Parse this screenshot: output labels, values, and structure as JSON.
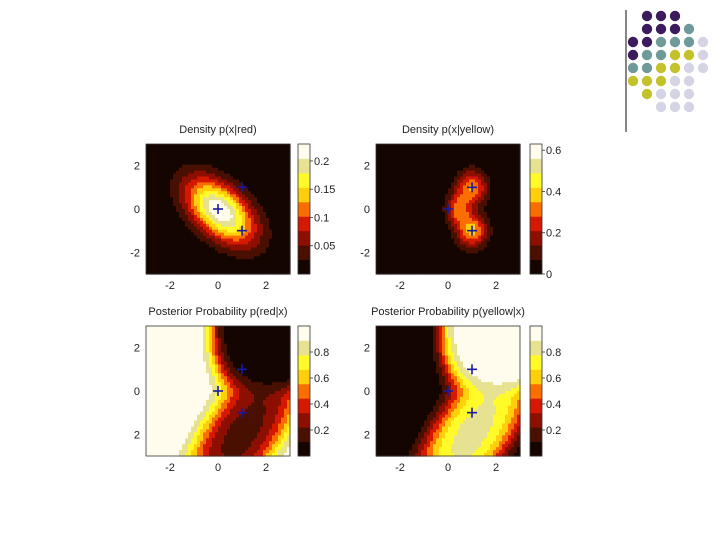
{
  "decoration": {
    "dot_colors": [
      "#3b1a5e",
      "#6f9a9a",
      "#c3c22a",
      "#d4d4e4"
    ],
    "rule_color": "#444444"
  },
  "chart_data": [
    {
      "type": "heatmap",
      "title": "Density p(x|red)",
      "xticks": [
        -2,
        0,
        2
      ],
      "yticks": [
        2,
        0,
        -2
      ],
      "xlim": [
        -3,
        3
      ],
      "ylim": [
        -3,
        3
      ],
      "colorbar": {
        "ticks": [
          0.05,
          0.1,
          0.15,
          0.2
        ],
        "labels": [
          "0.05",
          "0.1",
          "0.15",
          "0.2"
        ],
        "range": [
          0,
          0.23
        ]
      },
      "markers": [
        {
          "x": 0,
          "y": 0
        },
        {
          "x": 1,
          "y": 1
        },
        {
          "x": 1,
          "y": -1
        }
      ]
    },
    {
      "type": "heatmap",
      "title": "Density p(x|yellow)",
      "xticks": [
        -2,
        0,
        2
      ],
      "yticks": [
        2,
        0,
        -2
      ],
      "xlim": [
        -3,
        3
      ],
      "ylim": [
        -3,
        3
      ],
      "colorbar": {
        "ticks": [
          0,
          0.2,
          0.4,
          0.6
        ],
        "labels": [
          "0",
          "0.2",
          "0.4",
          "0.6"
        ],
        "range": [
          0,
          0.63
        ]
      },
      "markers": [
        {
          "x": 0,
          "y": 0
        },
        {
          "x": 1,
          "y": 1
        },
        {
          "x": 1,
          "y": -1
        }
      ]
    },
    {
      "type": "heatmap",
      "title": "Posterior Probability p(red|x)",
      "xticks": [
        -2,
        0,
        2
      ],
      "yticks": [
        2,
        0,
        2
      ],
      "xlim": [
        -3,
        3
      ],
      "ylim": [
        -3,
        3
      ],
      "colorbar": {
        "ticks": [
          0.2,
          0.4,
          0.6,
          0.8
        ],
        "labels": [
          "0.2",
          "0.4",
          "0.6",
          "0.8"
        ],
        "range": [
          0,
          1
        ]
      },
      "markers": [
        {
          "x": 0,
          "y": 0
        },
        {
          "x": 1,
          "y": 1
        },
        {
          "x": 1,
          "y": -1
        }
      ]
    },
    {
      "type": "heatmap",
      "title": "Posterior Probability p(yellow|x)",
      "xticks": [
        -2,
        0,
        2
      ],
      "yticks": [
        2,
        0,
        2
      ],
      "xlim": [
        -3,
        3
      ],
      "ylim": [
        -3,
        3
      ],
      "colorbar": {
        "ticks": [
          0.2,
          0.4,
          0.6,
          0.8
        ],
        "labels": [
          "0.2",
          "0.4",
          "0.6",
          "0.8"
        ],
        "range": [
          0,
          1
        ]
      },
      "markers": [
        {
          "x": 0,
          "y": 0
        },
        {
          "x": 1,
          "y": 1
        },
        {
          "x": 1,
          "y": -1
        }
      ]
    }
  ]
}
